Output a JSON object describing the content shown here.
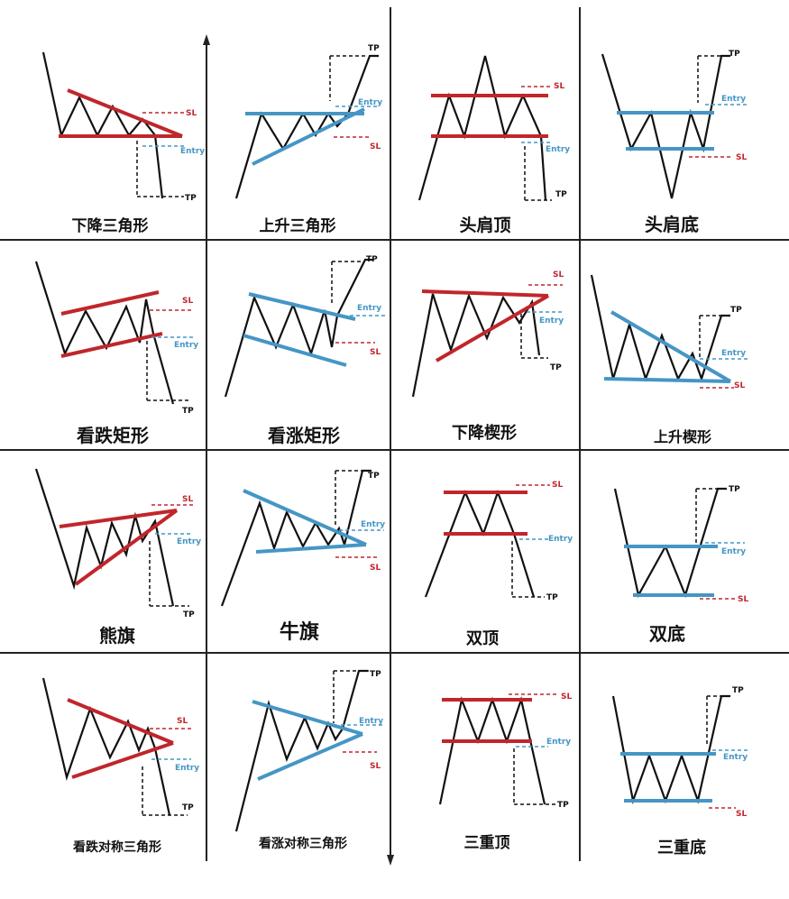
{
  "colors": {
    "price": "#111111",
    "red_line": "#c0262c",
    "blue_line": "#4596c5",
    "sl_text": "#c0262c",
    "entry_text": "#4596c5",
    "tp_text": "#111111",
    "grid": "#222222"
  },
  "annotation_labels": {
    "sl": "SL",
    "entry": "Entry",
    "tp": "TP"
  },
  "patterns": [
    {
      "title": "下降三角形",
      "line_color": "red"
    },
    {
      "title": "上升三角形",
      "line_color": "blue"
    },
    {
      "title": "头肩顶",
      "line_color": "red"
    },
    {
      "title": "头肩底",
      "line_color": "blue"
    },
    {
      "title": "看跌矩形",
      "line_color": "red"
    },
    {
      "title": "看涨矩形",
      "line_color": "blue"
    },
    {
      "title": "下降楔形",
      "line_color": "red"
    },
    {
      "title": "上升楔形",
      "line_color": "blue"
    },
    {
      "title": "熊旗",
      "line_color": "red"
    },
    {
      "title": "牛旗",
      "line_color": "blue"
    },
    {
      "title": "双顶",
      "line_color": "red"
    },
    {
      "title": "双底",
      "line_color": "blue"
    },
    {
      "title": "看跌对称三角形",
      "line_color": "red"
    },
    {
      "title": "看涨对称三角形",
      "line_color": "blue"
    },
    {
      "title": "三重顶",
      "line_color": "red"
    },
    {
      "title": "三重底",
      "line_color": "blue"
    }
  ]
}
